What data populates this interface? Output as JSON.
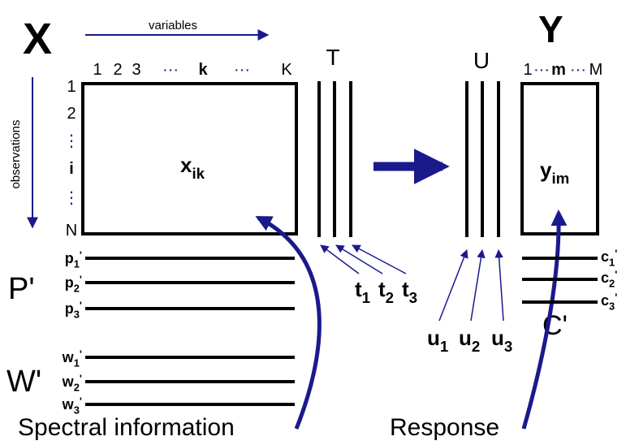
{
  "x_block": {
    "title": "X",
    "variables_label": "variables",
    "observations_label": "observations",
    "column_labels": [
      "1",
      "2",
      "3",
      "···",
      "k",
      "···",
      "K"
    ],
    "row_labels": [
      "1",
      "2",
      "⋮",
      "i",
      "⋮",
      "N"
    ],
    "cell": {
      "base": "x",
      "sub": "ik"
    }
  },
  "t_block": {
    "title": "T",
    "scores": [
      {
        "base": "t",
        "sub": "1"
      },
      {
        "base": "t",
        "sub": "2"
      },
      {
        "base": "t",
        "sub": "3"
      }
    ]
  },
  "u_block": {
    "title": "U",
    "scores": [
      {
        "base": "u",
        "sub": "1"
      },
      {
        "base": "u",
        "sub": "2"
      },
      {
        "base": "u",
        "sub": "3"
      }
    ]
  },
  "y_block": {
    "title": "Y",
    "column_labels": [
      "1",
      "···",
      "m",
      "···",
      "M"
    ],
    "cell": {
      "base": "y",
      "sub": "im"
    }
  },
  "p_loadings": {
    "title": "P'",
    "items": [
      {
        "base": "p",
        "sub": "1",
        "sup": "'"
      },
      {
        "base": "p",
        "sub": "2",
        "sup": "'"
      },
      {
        "base": "p",
        "sub": "3",
        "sup": "'"
      }
    ]
  },
  "w_weights": {
    "title": "W'",
    "items": [
      {
        "base": "w",
        "sub": "1",
        "sup": "'"
      },
      {
        "base": "w",
        "sub": "2",
        "sup": "'"
      },
      {
        "base": "w",
        "sub": "3",
        "sup": "'"
      }
    ]
  },
  "c_weights": {
    "title": "C'",
    "items": [
      {
        "base": "c",
        "sub": "1",
        "sup": "'"
      },
      {
        "base": "c",
        "sub": "2",
        "sup": "'"
      },
      {
        "base": "c",
        "sub": "3",
        "sup": "'"
      }
    ]
  },
  "captions": {
    "spectral": "Spectral information",
    "response": "Response"
  }
}
